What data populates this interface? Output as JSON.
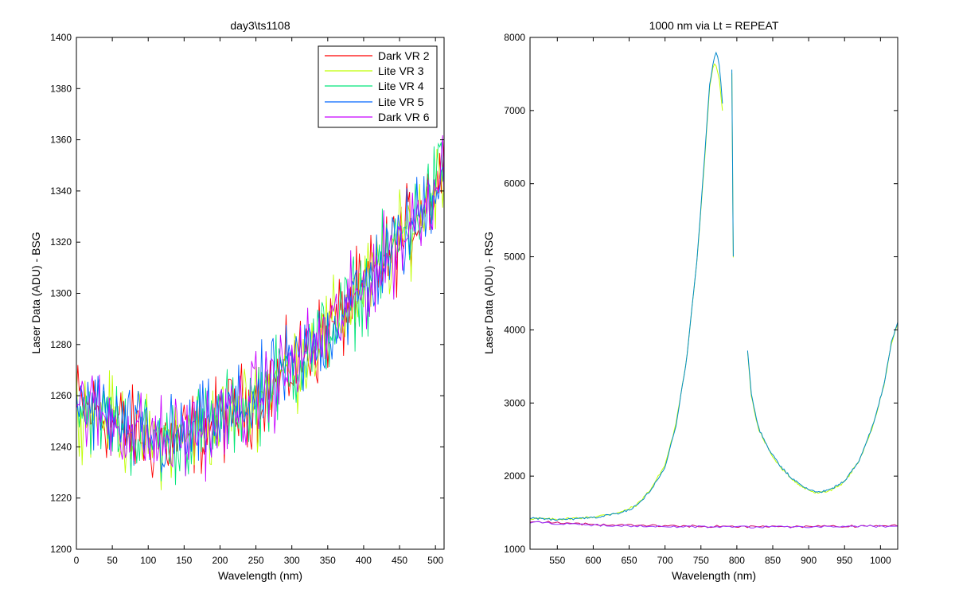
{
  "chart_data": [
    {
      "type": "line",
      "title": "day3\\ts1108",
      "xlabel": "Wavelength (nm)",
      "ylabel": "Laser Data (ADU) - BSG",
      "xlim": [
        0,
        512
      ],
      "ylim": [
        1200,
        1400
      ],
      "xticks": [
        0,
        50,
        100,
        150,
        200,
        250,
        300,
        350,
        400,
        450,
        500
      ],
      "yticks": [
        1200,
        1220,
        1240,
        1260,
        1280,
        1300,
        1320,
        1340,
        1360,
        1380,
        1400
      ],
      "legend_position": "top-right",
      "grid": false,
      "series": [
        {
          "name": "Dark VR 2",
          "color": "#ff0000"
        },
        {
          "name": "Lite VR 3",
          "color": "#bfff00"
        },
        {
          "name": "Lite VR 4",
          "color": "#00e57a"
        },
        {
          "name": "Lite VR 5",
          "color": "#0066ff"
        },
        {
          "name": "Dark VR 6",
          "color": "#c800ff"
        }
      ],
      "trend": {
        "x": [
          0,
          25,
          50,
          75,
          100,
          125,
          150,
          175,
          200,
          225,
          250,
          275,
          300,
          325,
          350,
          375,
          400,
          425,
          450,
          475,
          500,
          512
        ],
        "y": [
          1258,
          1254,
          1250,
          1246,
          1243,
          1242,
          1244,
          1247,
          1250,
          1254,
          1259,
          1265,
          1271,
          1278,
          1285,
          1293,
          1302,
          1311,
          1320,
          1330,
          1343,
          1352
        ]
      },
      "noise_amplitude": 12
    },
    {
      "type": "line",
      "title": "1000 nm via Lt = REPEAT",
      "xlabel": "Wavelength (nm)",
      "ylabel": "Laser Data (ADU) - RSG",
      "xlim": [
        512,
        1024
      ],
      "ylim": [
        1000,
        8000
      ],
      "xticks": [
        550,
        600,
        650,
        700,
        750,
        800,
        850,
        900,
        950,
        1000
      ],
      "yticks": [
        1000,
        2000,
        3000,
        4000,
        5000,
        6000,
        7000,
        8000
      ],
      "grid": false,
      "series": [
        {
          "name": "",
          "color": "#bfff00",
          "segments": [
            {
              "x": [
                512,
                550,
                600,
                640,
                660,
                680,
                700,
                715,
                730,
                745,
                755,
                762,
                768,
                772,
                776,
                780
              ],
              "y": [
                1420,
                1410,
                1440,
                1510,
                1600,
                1820,
                2150,
                2700,
                3600,
                5000,
                6300,
                7300,
                7650,
                7600,
                7400,
                7000
              ]
            },
            {
              "x": [
                793,
                795
              ],
              "y": [
                7500,
                5000
              ]
            },
            {
              "x": [
                815,
                820,
                830,
                845,
                860,
                875,
                890,
                905,
                915,
                930,
                950,
                970,
                990,
                1005,
                1015,
                1024
              ],
              "y": [
                3700,
                3100,
                2650,
                2350,
                2130,
                1980,
                1860,
                1790,
                1770,
                1800,
                1920,
                2200,
                2700,
                3250,
                3800,
                4100
              ]
            }
          ]
        },
        {
          "name": "",
          "color": "#0088cc",
          "segments": [
            {
              "x": [
                512,
                550,
                600,
                640,
                660,
                680,
                700,
                715,
                730,
                745,
                755,
                762,
                768,
                772,
                776,
                780
              ],
              "y": [
                1430,
                1400,
                1430,
                1500,
                1590,
                1800,
                2130,
                2680,
                3580,
                5020,
                6350,
                7350,
                7700,
                7800,
                7600,
                7100
              ]
            },
            {
              "x": [
                793,
                795
              ],
              "y": [
                7550,
                5000
              ]
            },
            {
              "x": [
                815,
                820,
                830,
                845,
                860,
                875,
                890,
                905,
                915,
                930,
                950,
                970,
                990,
                1005,
                1015,
                1024
              ],
              "y": [
                3720,
                3120,
                2660,
                2360,
                2140,
                1990,
                1870,
                1800,
                1780,
                1810,
                1930,
                2210,
                2710,
                3260,
                3820,
                4120
              ]
            }
          ]
        },
        {
          "name": "",
          "color": "#cc0066",
          "segments": [
            {
              "x": [
                512,
                600,
                700,
                800,
                900,
                1024
              ],
              "y": [
                1380,
                1340,
                1320,
                1310,
                1310,
                1320
              ]
            }
          ]
        },
        {
          "name": "",
          "color": "#9933ff",
          "segments": [
            {
              "x": [
                512,
                600,
                700,
                800,
                900,
                1024
              ],
              "y": [
                1370,
                1330,
                1310,
                1305,
                1305,
                1315
              ]
            }
          ]
        }
      ]
    }
  ]
}
